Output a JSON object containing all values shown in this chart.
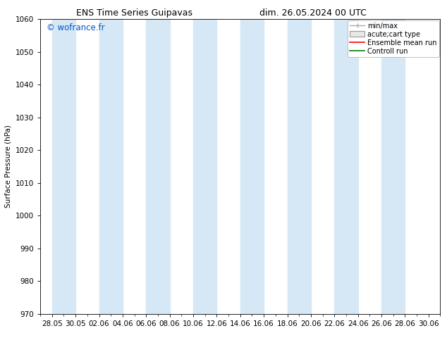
{
  "title_left": "ENS Time Series Guipavas",
  "title_right": "dim. 26.05.2024 00 UTC",
  "ylabel": "Surface Pressure (hPa)",
  "ylim": [
    970,
    1060
  ],
  "yticks": [
    970,
    980,
    990,
    1000,
    1010,
    1020,
    1030,
    1040,
    1050,
    1060
  ],
  "bg_color": "#ffffff",
  "plot_bg_color": "#ffffff",
  "shaded_band_color": "#d6e8f5",
  "watermark": "© wofrance.fr",
  "watermark_color": "#0055cc",
  "legend_entries": [
    "min/max",
    "acute;cart type",
    "Ensemble mean run",
    "Controll run"
  ],
  "legend_colors": [
    "#aaaaaa",
    "#cccccc",
    "#ff0000",
    "#008000"
  ],
  "tick_labels": [
    "28.05",
    "30.05",
    "02.06",
    "04.06",
    "06.06",
    "08.06",
    "10.06",
    "12.06",
    "14.06",
    "16.06",
    "18.06",
    "20.06",
    "22.06",
    "24.06",
    "26.06",
    "28.06",
    "30.06"
  ],
  "font_size": 7.5,
  "title_font_size": 9
}
